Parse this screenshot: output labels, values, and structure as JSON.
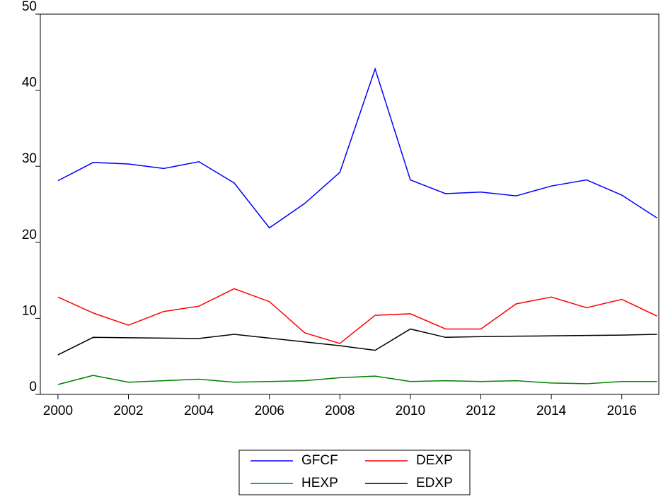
{
  "chart_data": {
    "type": "line",
    "x": [
      2000,
      2001,
      2002,
      2003,
      2004,
      2005,
      2006,
      2007,
      2008,
      2009,
      2010,
      2011,
      2012,
      2013,
      2014,
      2015,
      2016,
      2017
    ],
    "series": [
      {
        "name": "GFCF",
        "color": "#0000ff",
        "values": [
          28.1,
          30.5,
          30.3,
          29.7,
          30.6,
          27.8,
          21.9,
          25.1,
          29.2,
          42.8,
          28.2,
          26.4,
          26.6,
          26.1,
          27.4,
          28.2,
          26.2,
          23.2
        ]
      },
      {
        "name": "DEXP",
        "color": "#ff0000",
        "values": [
          12.8,
          10.7,
          9.1,
          10.9,
          11.6,
          13.9,
          12.2,
          8.1,
          6.7,
          10.4,
          10.6,
          8.6,
          8.6,
          11.9,
          12.8,
          11.4,
          12.5,
          10.3
        ]
      },
      {
        "name": "HEXP",
        "color": "#008000",
        "values": [
          1.3,
          2.5,
          1.6,
          1.8,
          2.0,
          1.6,
          1.7,
          1.8,
          2.2,
          2.4,
          1.7,
          1.8,
          1.7,
          1.8,
          1.5,
          1.4,
          1.7,
          1.7
        ]
      },
      {
        "name": "EDXP",
        "color": "#000000",
        "values": [
          5.2,
          7.5,
          7.45,
          7.4,
          7.35,
          7.9,
          7.4,
          6.9,
          6.4,
          5.8,
          8.6,
          7.5,
          7.6,
          7.65,
          7.7,
          7.75,
          7.8,
          7.9
        ]
      }
    ],
    "xlim": [
      1999.5,
      2017.05
    ],
    "xticks": [
      2000,
      2002,
      2004,
      2006,
      2008,
      2010,
      2012,
      2014,
      2016
    ],
    "ylim": [
      0,
      50
    ],
    "yticks": [
      0,
      10,
      20,
      30,
      40,
      50
    ],
    "grid": false,
    "legend": "bottom"
  }
}
